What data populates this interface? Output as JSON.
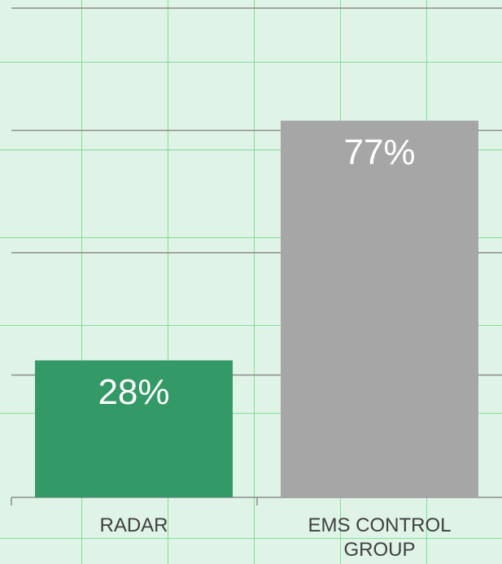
{
  "chart_data": {
    "type": "bar",
    "categories": [
      "RADAR",
      "EMS CONTROL GROUP"
    ],
    "values": [
      28,
      77
    ],
    "value_labels": [
      "28%",
      "77%"
    ],
    "colors": [
      "#339966",
      "#a6a6a6"
    ],
    "ylim": [
      0,
      100
    ],
    "yticks": [
      0,
      25,
      50,
      75,
      100
    ],
    "grid": true
  }
}
